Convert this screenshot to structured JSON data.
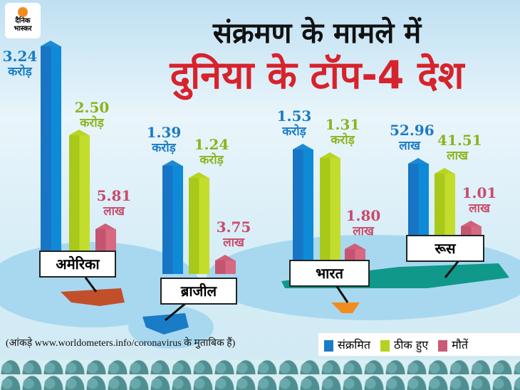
{
  "logo": {
    "line1": "दैनिक",
    "line2": "भास्कर"
  },
  "title": {
    "line1": "संक्रमण के मामले में",
    "line2": "दुनिया के टॉप-4 देश"
  },
  "colors": {
    "infected": "#1a7cc6",
    "recovered": "#b5d220",
    "deaths": "#cc5a74"
  },
  "chart_data": {
    "type": "bar",
    "title": "संक्रमण के मामले में दुनिया के टॉप-4 देश",
    "categories": [
      "अमेरिका",
      "ब्राजील",
      "भारत",
      "रूस"
    ],
    "units_note": "values in crore (करोड़); लाख = 0.01 crore",
    "series": [
      {
        "name": "संक्रमित",
        "values": [
          3.24,
          1.39,
          1.53,
          0.5296
        ],
        "labels": [
          {
            "n": "3.24",
            "u": "करोड़"
          },
          {
            "n": "1.39",
            "u": "करोड़"
          },
          {
            "n": "1.53",
            "u": "करोड़"
          },
          {
            "n": "52.96",
            "u": "लाख"
          }
        ]
      },
      {
        "name": "ठीक हुए",
        "values": [
          2.5,
          1.24,
          1.31,
          0.4151
        ],
        "labels": [
          {
            "n": "2.50",
            "u": "करोड़"
          },
          {
            "n": "1.24",
            "u": "करोड़"
          },
          {
            "n": "1.31",
            "u": "करोड़"
          },
          {
            "n": "41.51",
            "u": "लाख"
          }
        ]
      },
      {
        "name": "मौतें",
        "values": [
          0.0581,
          0.0375,
          0.018,
          0.0101
        ],
        "labels": [
          {
            "n": "5.81",
            "u": "लाख"
          },
          {
            "n": "3.75",
            "u": "लाख"
          },
          {
            "n": "1.80",
            "u": "लाख"
          },
          {
            "n": "1.01",
            "u": "लाख"
          }
        ]
      }
    ],
    "legend": [
      "संक्रमित",
      "ठीक हुए",
      "मौतें"
    ],
    "legend_position": "bottom-right"
  },
  "source": "(आंकड़े www.worldometers.info/coronavirus के मुताबिक हैं)"
}
